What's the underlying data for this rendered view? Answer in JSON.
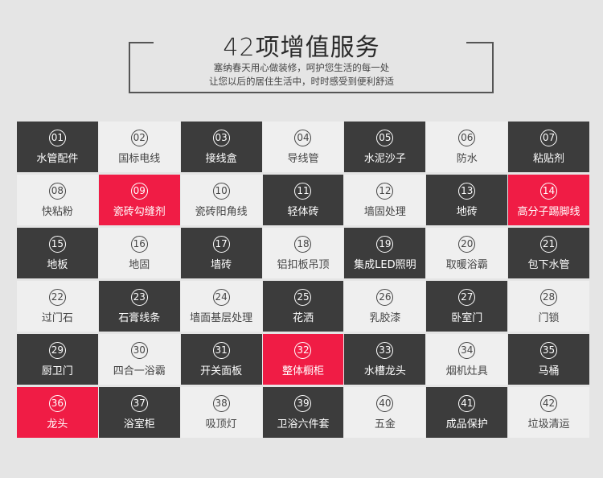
{
  "header": {
    "title": "42项增值服务",
    "subtitle_lines": [
      "塞纳春天用心做装修，呵护您生活的每一处",
      "让您以后的居住生活中，时时感受到便利舒适"
    ]
  },
  "colors": {
    "dark": "#3c3c3c",
    "light": "#efefef",
    "red": "#f01c45",
    "background": "#e5e5e5"
  },
  "services": [
    {
      "num": "01",
      "label": "水管配件",
      "style": "dark"
    },
    {
      "num": "02",
      "label": "国标电线",
      "style": "light"
    },
    {
      "num": "03",
      "label": "接线盒",
      "style": "dark"
    },
    {
      "num": "04",
      "label": "导线管",
      "style": "light"
    },
    {
      "num": "05",
      "label": "水泥沙子",
      "style": "dark"
    },
    {
      "num": "06",
      "label": "防水",
      "style": "light"
    },
    {
      "num": "07",
      "label": "粘贴剂",
      "style": "dark"
    },
    {
      "num": "08",
      "label": "快粘粉",
      "style": "light"
    },
    {
      "num": "09",
      "label": "瓷砖勾缝剂",
      "style": "red"
    },
    {
      "num": "10",
      "label": "瓷砖阳角线",
      "style": "light"
    },
    {
      "num": "11",
      "label": "轻体砖",
      "style": "dark"
    },
    {
      "num": "12",
      "label": "墙固处理",
      "style": "light"
    },
    {
      "num": "13",
      "label": "地砖",
      "style": "dark"
    },
    {
      "num": "14",
      "label": "高分子踢脚线",
      "style": "red"
    },
    {
      "num": "15",
      "label": "地板",
      "style": "dark"
    },
    {
      "num": "16",
      "label": "地固",
      "style": "light"
    },
    {
      "num": "17",
      "label": "墙砖",
      "style": "dark"
    },
    {
      "num": "18",
      "label": "铝扣板吊顶",
      "style": "light"
    },
    {
      "num": "19",
      "label": "集成LED照明",
      "style": "dark"
    },
    {
      "num": "20",
      "label": "取暖浴霸",
      "style": "light"
    },
    {
      "num": "21",
      "label": "包下水管",
      "style": "dark"
    },
    {
      "num": "22",
      "label": "过门石",
      "style": "light"
    },
    {
      "num": "23",
      "label": "石膏线条",
      "style": "dark"
    },
    {
      "num": "24",
      "label": "墙面基层处理",
      "style": "light"
    },
    {
      "num": "25",
      "label": "花洒",
      "style": "dark"
    },
    {
      "num": "26",
      "label": "乳胶漆",
      "style": "light"
    },
    {
      "num": "27",
      "label": "卧室门",
      "style": "dark"
    },
    {
      "num": "28",
      "label": "门锁",
      "style": "light"
    },
    {
      "num": "29",
      "label": "厨卫门",
      "style": "dark"
    },
    {
      "num": "30",
      "label": "四合一浴霸",
      "style": "light"
    },
    {
      "num": "31",
      "label": "开关面板",
      "style": "dark"
    },
    {
      "num": "32",
      "label": "整体橱柜",
      "style": "red"
    },
    {
      "num": "33",
      "label": "水槽龙头",
      "style": "dark"
    },
    {
      "num": "34",
      "label": "烟机灶具",
      "style": "light"
    },
    {
      "num": "35",
      "label": "马桶",
      "style": "dark"
    },
    {
      "num": "36",
      "label": "龙头",
      "style": "red"
    },
    {
      "num": "37",
      "label": "浴室柜",
      "style": "dark"
    },
    {
      "num": "38",
      "label": "吸顶灯",
      "style": "light"
    },
    {
      "num": "39",
      "label": "卫浴六件套",
      "style": "dark"
    },
    {
      "num": "40",
      "label": "五金",
      "style": "light"
    },
    {
      "num": "41",
      "label": "成品保护",
      "style": "dark"
    },
    {
      "num": "42",
      "label": "垃圾清运",
      "style": "light"
    }
  ]
}
